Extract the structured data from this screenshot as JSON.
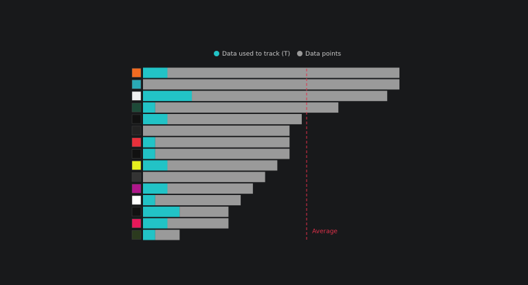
{
  "chart_data": {
    "type": "stacked-bar-horizontal",
    "categories": [
      null,
      null,
      null,
      null,
      null,
      null,
      null,
      null,
      null,
      null,
      null,
      null,
      null,
      null,
      null
    ],
    "series": [
      {
        "name": "Data used to track (T)",
        "color": "#22c3c6",
        "values": [
          2,
          0,
          4,
          1,
          2,
          0,
          1,
          1,
          2,
          0,
          2,
          1,
          3,
          2,
          1
        ]
      },
      {
        "name": "Data points",
        "color": "#9a9a9a",
        "values": [
          19,
          21,
          16,
          15,
          11,
          12,
          11,
          11,
          9,
          10,
          7,
          7,
          4,
          5,
          2
        ]
      }
    ],
    "xlim": [
      0,
      21
    ],
    "average": {
      "label": "Average",
      "value": 13.4,
      "color": "#e0304a"
    },
    "legend": "top"
  }
}
